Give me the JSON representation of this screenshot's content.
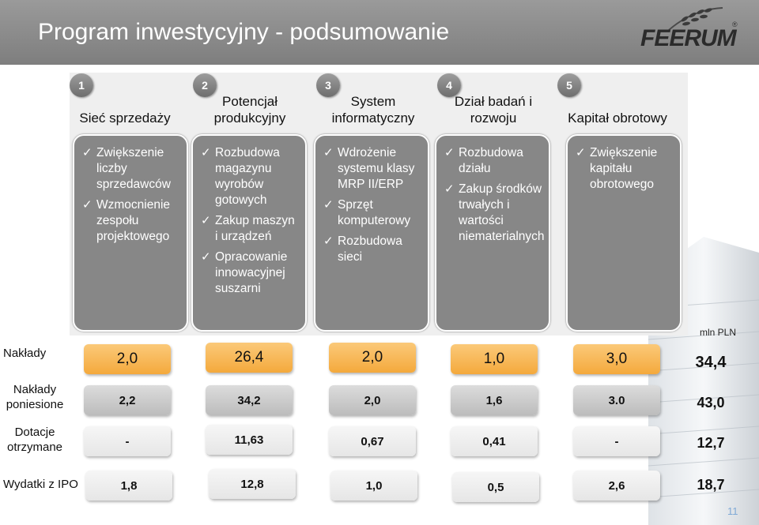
{
  "header": {
    "title": "Program inwestycyjny - podsumowanie",
    "logo": "FEERUM",
    "logo_mark": "®"
  },
  "columns": [
    {
      "number": "1",
      "title": "Sieć sprzedaży",
      "items": [
        "Zwiększenie liczby sprzedawców",
        "Wzmocnienie zespołu projektowego"
      ]
    },
    {
      "number": "2",
      "title": "Potencjał produkcyjny",
      "items": [
        "Rozbudowa magazynu wyrobów gotowych",
        "Zakup maszyn i urządzeń",
        "Opracowanie innowacyjnej suszarni"
      ]
    },
    {
      "number": "3",
      "title": "System informatyczny",
      "items": [
        "Wdrożenie systemu klasy MRP II/ERP",
        "Sprzęt komputerowy",
        "Rozbudowa sieci"
      ]
    },
    {
      "number": "4",
      "title": "Dział badań i rozwoju",
      "items": [
        "Rozbudowa działu",
        "Zakup środków trwałych i wartości niematerialnych"
      ]
    },
    {
      "number": "5",
      "title": "Kapitał obrotowy",
      "items": [
        "Zwiększenie kapitału obrotowego"
      ]
    }
  ],
  "unit": "mln PLN",
  "rows": [
    {
      "label": "Nakłady",
      "values": [
        "2,0",
        "26,4",
        "2,0",
        "1,0",
        "3,0"
      ],
      "total": "34,4"
    },
    {
      "label": "Nakłady poniesione",
      "values": [
        "2,2",
        "34,2",
        "2,0",
        "1,6",
        "3.0"
      ],
      "total": "43,0"
    },
    {
      "label": "Dotacje otrzymane",
      "values": [
        "-",
        "11,63",
        "0,67",
        "0,41",
        "-"
      ],
      "total": "12,7"
    },
    {
      "label": "Wydatki z IPO",
      "values": [
        "1,8",
        "12,8",
        "1,0",
        "0,5",
        "2,6"
      ],
      "total": "18,7"
    }
  ],
  "page_number": "11",
  "colors": {
    "header": "#8a8a8a",
    "box": "#878787",
    "accent": "#f4a93c",
    "page_number": "#7fa9d6"
  },
  "icons": [
    "check-icon",
    "silo-background-icon",
    "wheat-logo-icon"
  ]
}
